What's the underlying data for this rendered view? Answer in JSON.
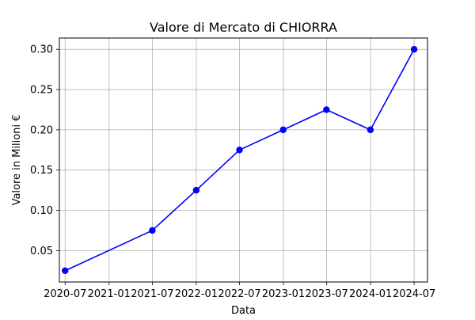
{
  "chart_data": {
    "type": "line",
    "title": "Valore di Mercato di CHIORRA",
    "xlabel": "Data",
    "ylabel": "Valore in Milioni €",
    "x_ticks": [
      "2020-07",
      "2021-01",
      "2021-07",
      "2022-01",
      "2022-07",
      "2023-01",
      "2023-07",
      "2024-01",
      "2024-07"
    ],
    "y_ticks": [
      "0.05",
      "0.10",
      "0.15",
      "0.20",
      "0.25",
      "0.30"
    ],
    "xlim": [
      "2020-06-07",
      "2024-08-26"
    ],
    "ylim": [
      0.011,
      0.314
    ],
    "grid": true,
    "series": [
      {
        "color": "#0000ff",
        "marker": "circle",
        "x": [
          "2020-07-01",
          "2021-07-01",
          "2022-01-01",
          "2022-07-01",
          "2022-12-31",
          "2023-06-30",
          "2023-12-31",
          "2024-07-01"
        ],
        "y": [
          0.025,
          0.075,
          0.125,
          0.175,
          0.2,
          0.225,
          0.2,
          0.3
        ]
      }
    ]
  }
}
